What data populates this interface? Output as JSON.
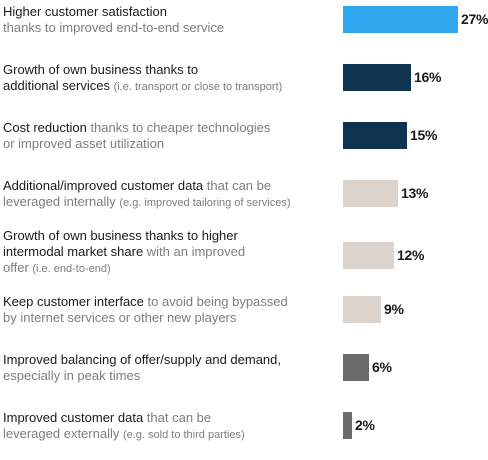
{
  "chart_data": {
    "type": "bar",
    "orientation": "horizontal",
    "categories": [
      "Higher customer satisfaction thanks to improved end-to-end service",
      "Growth of own business thanks to additional services (i.e. transport or close to transport)",
      "Cost reduction thanks to cheaper technologies or improved asset utilization",
      "Additional/improved customer data that can be leveraged internally (e.g. improved tailoring of services)",
      "Growth of own business thanks to higher intermodal market share with an improved offer (i.e. end-to-end)",
      "Keep customer interface to avoid being bypassed by internet services or other new players",
      "Improved balancing of offer/supply and demand, especially in peak times",
      "Improved customer data that can be leveraged externally (e.g. sold to third parties)"
    ],
    "values": [
      27,
      16,
      15,
      13,
      12,
      9,
      6,
      2
    ],
    "value_labels": [
      "27%",
      "16%",
      "15%",
      "13%",
      "12%",
      "9%",
      "6%",
      "2%"
    ],
    "bar_colors": [
      "#2fa8f0",
      "#0f3450",
      "#0f3450",
      "#dcd3cd",
      "#dcd3cd",
      "#dcd3cd",
      "#6b6b6b",
      "#6b6b6b"
    ],
    "xlim": [
      0,
      27
    ],
    "grid": false,
    "rows": [
      {
        "lines": [
          [
            {
              "t": "Higher customer satisfaction",
              "c": "main"
            }
          ],
          [
            {
              "t": "thanks to improved end-to-end service",
              "c": "sub"
            }
          ]
        ]
      },
      {
        "lines": [
          [
            {
              "t": "Growth of own business thanks to",
              "c": "main"
            }
          ],
          [
            {
              "t": "additional services ",
              "c": "main"
            },
            {
              "t": "(i.e. transport or close to transport)",
              "c": "sub small"
            }
          ]
        ]
      },
      {
        "lines": [
          [
            {
              "t": "Cost reduction ",
              "c": "main"
            },
            {
              "t": "thanks to cheaper technologies",
              "c": "sub"
            }
          ],
          [
            {
              "t": "or improved asset utilization",
              "c": "sub"
            }
          ]
        ]
      },
      {
        "lines": [
          [
            {
              "t": "Additional/improved customer data ",
              "c": "main"
            },
            {
              "t": "that can be",
              "c": "sub"
            }
          ],
          [
            {
              "t": "leveraged internally ",
              "c": "sub"
            },
            {
              "t": "(e.g. improved tailoring of services)",
              "c": "sub small"
            }
          ]
        ]
      },
      {
        "lines": [
          [
            {
              "t": "Growth of own business thanks to higher",
              "c": "main"
            }
          ],
          [
            {
              "t": "intermodal market share ",
              "c": "main"
            },
            {
              "t": "with an improved",
              "c": "sub"
            }
          ],
          [
            {
              "t": "offer ",
              "c": "sub"
            },
            {
              "t": "(i.e. end-to-end)",
              "c": "sub small"
            }
          ]
        ]
      },
      {
        "lines": [
          [
            {
              "t": "Keep customer interface ",
              "c": "main"
            },
            {
              "t": "to avoid being bypassed",
              "c": "sub"
            }
          ],
          [
            {
              "t": "by internet services or other new players",
              "c": "sub"
            }
          ]
        ]
      },
      {
        "lines": [
          [
            {
              "t": "Improved balancing of offer/supply and demand,",
              "c": "main"
            }
          ],
          [
            {
              "t": "especially in peak times",
              "c": "sub"
            }
          ]
        ]
      },
      {
        "lines": [
          [
            {
              "t": "Improved customer data ",
              "c": "main"
            },
            {
              "t": "that can be",
              "c": "sub"
            }
          ],
          [
            {
              "t": "leveraged externally ",
              "c": "sub"
            },
            {
              "t": "(e.g. sold to third parties)",
              "c": "sub small"
            }
          ]
        ]
      }
    ]
  }
}
